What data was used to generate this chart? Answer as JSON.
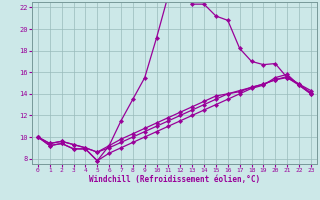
{
  "xlabel": "Windchill (Refroidissement éolien,°C)",
  "xlim": [
    -0.5,
    23.5
  ],
  "ylim": [
    7.5,
    22.5
  ],
  "yticks": [
    8,
    10,
    12,
    14,
    16,
    18,
    20,
    22
  ],
  "xticks": [
    0,
    1,
    2,
    3,
    4,
    5,
    6,
    7,
    8,
    9,
    10,
    11,
    12,
    13,
    14,
    15,
    16,
    17,
    18,
    19,
    20,
    21,
    22,
    23
  ],
  "bg_color": "#cce8e8",
  "line_color": "#990099",
  "grid_color": "#99bbbb",
  "line1_y": [
    10.0,
    9.2,
    9.4,
    8.9,
    8.9,
    7.8,
    9.2,
    11.5,
    13.5,
    15.5,
    19.2,
    23.2,
    23.6,
    22.3,
    22.3,
    21.2,
    20.8,
    18.2,
    17.0,
    16.7,
    16.8,
    15.5,
    14.8,
    14.0
  ],
  "line2_y": [
    10.0,
    9.2,
    9.4,
    8.9,
    8.9,
    7.8,
    8.5,
    9.0,
    9.5,
    10.0,
    10.5,
    11.0,
    11.5,
    12.0,
    12.5,
    13.0,
    13.5,
    14.0,
    14.5,
    14.8,
    15.5,
    15.8,
    14.8,
    14.0
  ],
  "line3_y": [
    10.0,
    9.4,
    9.6,
    9.3,
    9.0,
    8.6,
    9.0,
    9.5,
    10.0,
    10.5,
    11.0,
    11.5,
    12.0,
    12.5,
    13.0,
    13.5,
    14.0,
    14.2,
    14.6,
    14.9,
    15.3,
    15.6,
    14.9,
    14.3
  ],
  "line4_y": [
    10.0,
    9.4,
    9.6,
    9.3,
    9.0,
    8.6,
    9.2,
    9.8,
    10.3,
    10.8,
    11.3,
    11.8,
    12.3,
    12.8,
    13.3,
    13.8,
    14.0,
    14.3,
    14.6,
    14.9,
    15.3,
    15.5,
    14.9,
    14.1
  ]
}
